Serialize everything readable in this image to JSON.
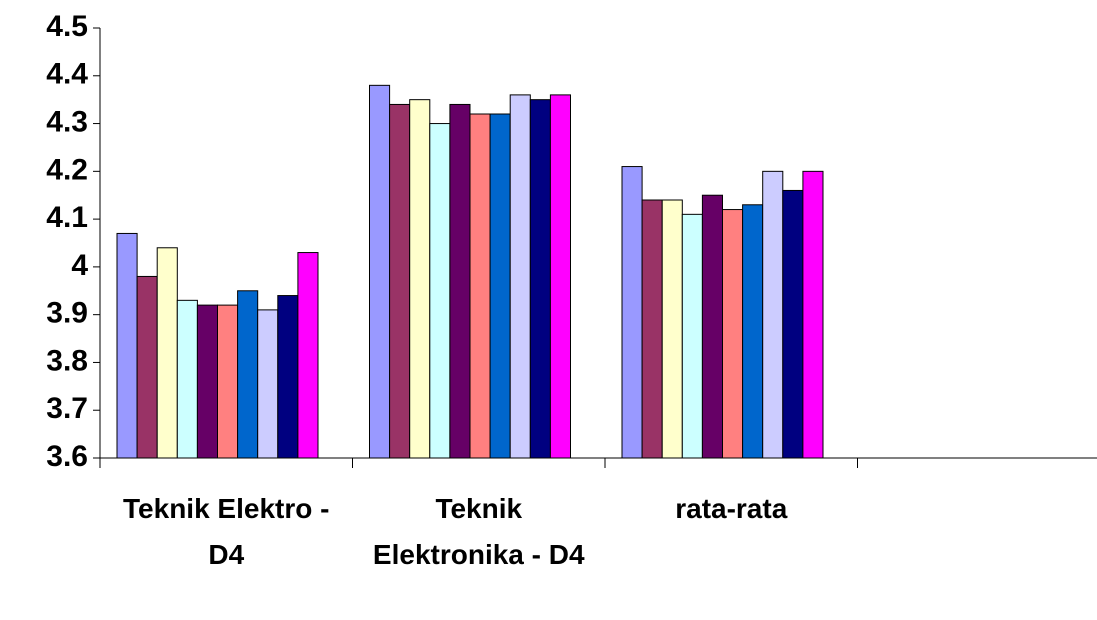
{
  "chart_data": {
    "type": "bar",
    "categories": [
      "Teknik Elektro -D4",
      "Teknik Elektronika - D4",
      "rata-rata",
      null
    ],
    "series": [
      {
        "color": "#9999ff",
        "values": [
          4.07,
          4.38,
          4.21,
          null
        ]
      },
      {
        "color": "#993366",
        "values": [
          3.98,
          4.34,
          4.14,
          null
        ]
      },
      {
        "color": "#ffffcc",
        "values": [
          4.04,
          4.35,
          4.14,
          null
        ]
      },
      {
        "color": "#ccffff",
        "values": [
          3.93,
          4.3,
          4.11,
          null
        ]
      },
      {
        "color": "#660066",
        "values": [
          3.92,
          4.34,
          4.15,
          null
        ]
      },
      {
        "color": "#ff8080",
        "values": [
          3.92,
          4.32,
          4.12,
          null
        ]
      },
      {
        "color": "#0066cc",
        "values": [
          3.95,
          4.32,
          4.13,
          null
        ]
      },
      {
        "color": "#ccccff",
        "values": [
          3.91,
          4.36,
          4.2,
          null
        ]
      },
      {
        "color": "#000080",
        "values": [
          3.94,
          4.35,
          4.16,
          null
        ]
      },
      {
        "color": "#ff00ff",
        "values": [
          4.03,
          4.36,
          4.2,
          null
        ]
      }
    ],
    "ylim": [
      3.6,
      4.5
    ],
    "yticks": [
      3.6,
      3.7,
      3.8,
      3.9,
      4,
      4.1,
      4.2,
      4.3,
      4.4,
      4.5
    ],
    "grid": false
  }
}
